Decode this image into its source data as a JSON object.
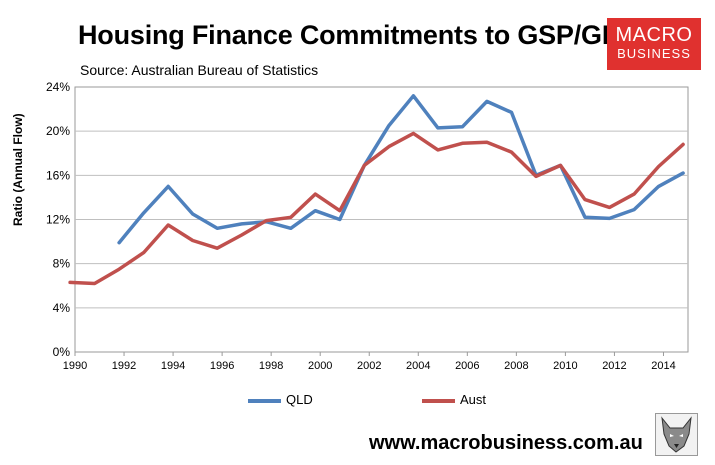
{
  "title": "Housing Finance Commitments to GSP/GDP",
  "subtitle": "Source: Australian Bureau of Statistics",
  "logo": {
    "line1": "MACRO",
    "line2": "BUSINESS",
    "color": "#e0312f"
  },
  "footer": "www.macrobusiness.com.au",
  "wolf_icon": "wolf-icon",
  "chart_data": {
    "type": "line",
    "ylabel": "Ratio (Annual Flow)",
    "xlabel": "",
    "xlim": [
      1990,
      2015
    ],
    "ylim": [
      0,
      24
    ],
    "x_ticks": [
      1990,
      1992,
      1994,
      1996,
      1998,
      2000,
      2002,
      2004,
      2006,
      2008,
      2010,
      2012,
      2014
    ],
    "y_ticks": [
      0,
      4,
      8,
      12,
      16,
      20,
      24
    ],
    "y_tick_labels": [
      "0%",
      "4%",
      "8%",
      "12%",
      "16%",
      "20%",
      "24%"
    ],
    "grid": "horizontal",
    "legend_position": "bottom",
    "series": [
      {
        "name": "QLD",
        "color": "#4f81bd",
        "x": [
          1991.8,
          1992.8,
          1993.8,
          1994.8,
          1995.8,
          1996.8,
          1997.8,
          1998.8,
          1999.8,
          2000.8,
          2001.8,
          2002.8,
          2003.8,
          2004.8,
          2005.8,
          2006.8,
          2007.8,
          2008.8,
          2009.8,
          2010.8,
          2011.8,
          2012.8,
          2013.8,
          2014.8
        ],
        "values": [
          9.9,
          12.6,
          15.0,
          12.5,
          11.2,
          11.6,
          11.8,
          11.2,
          12.8,
          12.0,
          16.9,
          20.5,
          23.2,
          20.3,
          20.4,
          22.7,
          21.7,
          16.0,
          16.9,
          12.2,
          12.1,
          12.9,
          15.0,
          16.2
        ]
      },
      {
        "name": "Aust",
        "color": "#c0504d",
        "x": [
          1989.8,
          1990.8,
          1991.8,
          1992.8,
          1993.8,
          1994.8,
          1995.8,
          1996.8,
          1997.8,
          1998.8,
          1999.8,
          2000.8,
          2001.8,
          2002.8,
          2003.8,
          2004.8,
          2005.8,
          2006.8,
          2007.8,
          2008.8,
          2009.8,
          2010.8,
          2011.8,
          2012.8,
          2013.8,
          2014.8
        ],
        "values": [
          6.3,
          6.2,
          7.5,
          9.0,
          11.5,
          10.1,
          9.4,
          10.6,
          11.9,
          12.2,
          14.3,
          12.8,
          16.9,
          18.6,
          19.8,
          18.3,
          18.9,
          19.0,
          18.1,
          15.9,
          16.9,
          13.8,
          13.1,
          14.3,
          16.8,
          18.8
        ]
      }
    ]
  }
}
